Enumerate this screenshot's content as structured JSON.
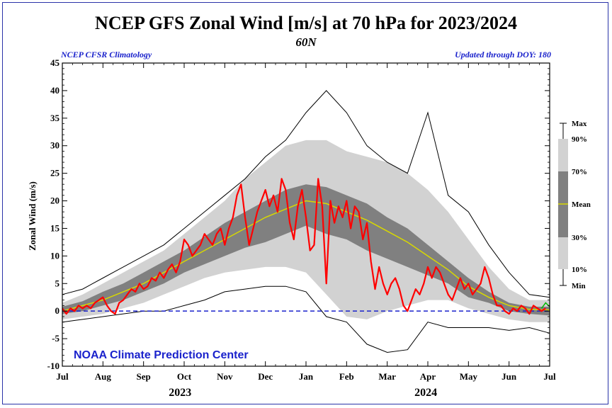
{
  "chart_data": {
    "type": "line",
    "title": "NCEP GFS Zonal Wind [m/s] at 70 hPa for 2023/2024",
    "subtitle": "60N",
    "left_note": "NCEP CFSR Climatology",
    "right_note": "Updated through DOY: 180",
    "ylabel": "Zonal Wind (m/s)",
    "ylim": [
      -10,
      45
    ],
    "yticks": [
      "45",
      "40",
      "35",
      "30",
      "25",
      "20",
      "15",
      "10",
      "5",
      "0",
      "-5",
      "-10"
    ],
    "ytick_values": [
      45,
      40,
      35,
      30,
      25,
      20,
      15,
      10,
      5,
      0,
      -5,
      -10
    ],
    "xticks": [
      "Jul",
      "Aug",
      "Sep",
      "Oct",
      "Nov",
      "Dec",
      "Jan",
      "Feb",
      "Mar",
      "Apr",
      "May",
      "Jun",
      "Jul"
    ],
    "xtick_months": [
      0,
      1,
      2,
      3,
      4,
      5,
      6,
      7,
      8,
      9,
      10,
      11,
      12
    ],
    "years": [
      {
        "label": "2023",
        "at": 2.9
      },
      {
        "label": "2024",
        "at": 8.95
      }
    ],
    "brand": "NOAA Climate Prediction Center",
    "legend": {
      "labels": [
        "Max",
        "90%",
        "70%",
        "Mean",
        "30%",
        "10%",
        "Min"
      ]
    },
    "colors": {
      "band_10_90": "#d2d2d2",
      "band_30_70": "#808080",
      "mean": "#d8d800",
      "observed": "#ff0000",
      "forecast": "#00bb00",
      "zero_line": "#1a22cc",
      "minmax": "#000000"
    },
    "x_unit": "months since Jul 1 2023",
    "climatology": {
      "x": [
        0,
        0.5,
        1,
        1.5,
        2,
        2.5,
        3,
        3.5,
        4,
        4.5,
        5,
        5.5,
        6,
        6.5,
        7,
        7.5,
        8,
        8.5,
        9,
        9.5,
        10,
        10.5,
        11,
        11.5,
        12
      ],
      "mean": [
        0,
        1,
        2,
        3.5,
        5,
        7,
        9,
        11,
        13,
        15,
        17,
        18.5,
        20,
        19.5,
        18,
        16.5,
        14.5,
        12.5,
        10,
        7.5,
        4.5,
        2.5,
        1,
        0.3,
        0.2
      ],
      "p30": [
        -0.5,
        0,
        1,
        2,
        3.5,
        5,
        7,
        8.5,
        10,
        11.5,
        12.5,
        14,
        15.5,
        14,
        13,
        11,
        9.5,
        8,
        6.5,
        5,
        2.5,
        1.5,
        0,
        -0.5,
        -0.8
      ],
      "p70": [
        0.8,
        1.8,
        3.5,
        5,
        7,
        9,
        11,
        13.5,
        16,
        18,
        20,
        22,
        23,
        22.5,
        21,
        19.5,
        17,
        15,
        12,
        9,
        6,
        3.5,
        1.5,
        0.8,
        0.8
      ],
      "p10": [
        -1.5,
        -1,
        -0.5,
        0.5,
        1.5,
        3,
        4.5,
        6,
        7,
        7.5,
        8,
        8,
        7,
        3,
        -1,
        -1.5,
        0,
        1,
        2,
        2,
        0.5,
        -0.5,
        -1.5,
        -2,
        -2
      ],
      "p90": [
        1.5,
        3,
        5,
        7,
        9,
        11,
        14,
        17,
        20,
        24,
        27,
        30,
        31,
        31,
        29,
        28,
        27,
        25,
        22,
        18,
        13,
        8,
        4,
        2,
        2
      ],
      "min": [
        -2,
        -1.5,
        -1,
        -0.5,
        0,
        0,
        1,
        2,
        3.5,
        4,
        4.5,
        4.5,
        3.5,
        -1,
        -2,
        -6,
        -7.5,
        -7,
        -2,
        -3,
        -3,
        -3,
        -3.5,
        -3,
        -4
      ],
      "max": [
        3,
        4,
        6,
        8,
        10,
        12,
        15,
        18,
        21,
        24,
        28,
        31,
        36,
        40,
        36,
        30,
        27,
        25,
        36,
        21,
        18,
        12,
        7,
        3,
        2.5
      ]
    },
    "observed": {
      "x": [
        0,
        0.1,
        0.2,
        0.3,
        0.4,
        0.5,
        0.6,
        0.7,
        0.8,
        0.9,
        1,
        1.1,
        1.2,
        1.3,
        1.4,
        1.5,
        1.6,
        1.7,
        1.8,
        1.9,
        2,
        2.1,
        2.2,
        2.3,
        2.4,
        2.5,
        2.6,
        2.7,
        2.8,
        2.9,
        3,
        3.1,
        3.2,
        3.3,
        3.4,
        3.5,
        3.6,
        3.7,
        3.8,
        3.9,
        4,
        4.1,
        4.2,
        4.3,
        4.4,
        4.5,
        4.6,
        4.7,
        4.8,
        4.9,
        5,
        5.1,
        5.2,
        5.3,
        5.4,
        5.5,
        5.6,
        5.7,
        5.8,
        5.9,
        6,
        6.1,
        6.2,
        6.3,
        6.4,
        6.5,
        6.6,
        6.7,
        6.8,
        6.9,
        7,
        7.1,
        7.2,
        7.3,
        7.4,
        7.5,
        7.6,
        7.7,
        7.8,
        7.9,
        8,
        8.1,
        8.2,
        8.3,
        8.4,
        8.5,
        8.6,
        8.7,
        8.8,
        8.9,
        9,
        9.1,
        9.2,
        9.3,
        9.4,
        9.5,
        9.6,
        9.7,
        9.8,
        9.9,
        10,
        10.1,
        10.2,
        10.3,
        10.4,
        10.5,
        10.6,
        10.7,
        10.8,
        10.9,
        11,
        11.1,
        11.2,
        11.3,
        11.4,
        11.5,
        11.6,
        11.7,
        11.8,
        11.9
      ],
      "y": [
        0.5,
        -0.5,
        0.5,
        0,
        1,
        0.5,
        1,
        0.5,
        1.5,
        2,
        2.5,
        1,
        0,
        -0.5,
        1.5,
        2,
        3,
        4,
        3.5,
        5,
        4,
        4.5,
        6,
        5.5,
        7,
        6,
        7.5,
        8.5,
        7,
        9,
        13,
        12,
        10,
        11,
        12,
        14,
        13,
        12,
        14,
        15,
        12,
        15,
        17,
        21,
        23,
        17,
        12,
        15,
        18,
        20,
        22,
        19,
        21,
        18,
        24,
        22,
        16,
        13,
        19,
        22,
        17,
        11,
        12,
        24,
        19,
        5,
        20,
        16,
        19,
        17,
        20,
        15,
        19,
        18,
        13,
        16,
        9,
        4,
        8,
        5,
        3,
        5,
        6,
        4,
        1,
        0,
        2,
        4,
        3,
        5,
        8,
        6,
        8,
        7,
        5,
        3,
        2,
        4,
        6,
        4,
        5,
        3,
        4,
        5,
        8,
        6,
        3,
        1,
        1,
        0,
        -0.5,
        0.5,
        0,
        1,
        0.5,
        -0.5,
        1,
        0.5,
        0,
        0.5
      ]
    },
    "forecast": {
      "x": [
        11.8,
        11.9,
        12
      ],
      "y": [
        0.5,
        1.5,
        0.8
      ]
    }
  }
}
